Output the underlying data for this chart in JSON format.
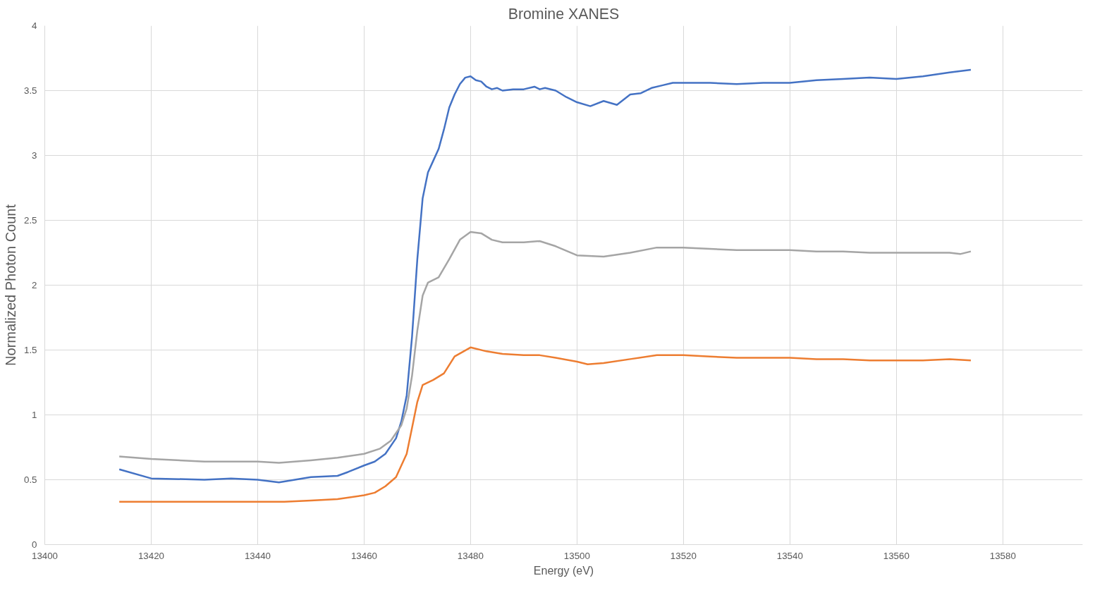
{
  "chart_data": {
    "type": "line",
    "title": "Bromine XANES",
    "xlabel": "Energy (eV)",
    "ylabel": "Normalized Photon Count",
    "xlim": [
      13400,
      13595
    ],
    "xticks": [
      13400,
      13420,
      13440,
      13460,
      13480,
      13500,
      13520,
      13540,
      13560,
      13580
    ],
    "ylim": [
      0,
      4
    ],
    "yticks": [
      0,
      0.5,
      1,
      1.5,
      2,
      2.5,
      3,
      3.5,
      4
    ],
    "grid": true,
    "marker": "none",
    "line_style": "solid",
    "series": [
      {
        "color": "#4472c4",
        "x": [
          13414,
          13420,
          13430,
          13435,
          13440,
          13444,
          13450,
          13455,
          13457,
          13460,
          13462,
          13464,
          13466,
          13467,
          13468,
          13469,
          13470,
          13471,
          13472,
          13473,
          13474,
          13475,
          13476,
          13477,
          13478,
          13479,
          13480,
          13481,
          13482,
          13483,
          13484,
          13485,
          13486,
          13488,
          13490,
          13492,
          13493,
          13494,
          13496,
          13498,
          13500,
          13502.5,
          13505,
          13507.5,
          13510,
          13512,
          13514,
          13516,
          13518,
          13520,
          13525,
          13530,
          13535,
          13540,
          13545,
          13550,
          13555,
          13560,
          13565,
          13570,
          13574
        ],
        "values": [
          0.58,
          0.51,
          0.5,
          0.51,
          0.5,
          0.48,
          0.52,
          0.53,
          0.56,
          0.61,
          0.64,
          0.7,
          0.82,
          0.95,
          1.15,
          1.6,
          2.2,
          2.67,
          2.87,
          2.96,
          3.05,
          3.2,
          3.37,
          3.47,
          3.55,
          3.6,
          3.61,
          3.58,
          3.57,
          3.53,
          3.51,
          3.52,
          3.5,
          3.51,
          3.51,
          3.53,
          3.51,
          3.52,
          3.5,
          3.45,
          3.41,
          3.38,
          3.42,
          3.39,
          3.47,
          3.48,
          3.52,
          3.54,
          3.56,
          3.56,
          3.56,
          3.55,
          3.56,
          3.56,
          3.58,
          3.59,
          3.6,
          3.59,
          3.61,
          3.64,
          3.66
        ]
      },
      {
        "color": "#a5a5a5",
        "x": [
          13414,
          13420,
          13430,
          13440,
          13444,
          13450,
          13455,
          13460,
          13463,
          13465,
          13467,
          13468,
          13469,
          13470,
          13471,
          13472,
          13474,
          13476,
          13478,
          13480,
          13482,
          13484,
          13486,
          13490,
          13493,
          13496,
          13500,
          13505,
          13510,
          13515,
          13520,
          13525,
          13530,
          13535,
          13540,
          13545,
          13550,
          13555,
          13560,
          13565,
          13570,
          13572,
          13574
        ],
        "values": [
          0.68,
          0.66,
          0.64,
          0.64,
          0.63,
          0.65,
          0.67,
          0.7,
          0.74,
          0.8,
          0.92,
          1.05,
          1.3,
          1.65,
          1.92,
          2.02,
          2.06,
          2.2,
          2.35,
          2.41,
          2.4,
          2.35,
          2.33,
          2.33,
          2.34,
          2.3,
          2.23,
          2.22,
          2.25,
          2.29,
          2.29,
          2.28,
          2.27,
          2.27,
          2.27,
          2.26,
          2.26,
          2.25,
          2.25,
          2.25,
          2.25,
          2.24,
          2.26
        ]
      },
      {
        "color": "#ed7d31",
        "x": [
          13414,
          13440,
          13445,
          13450,
          13455,
          13460,
          13462,
          13464,
          13466,
          13468,
          13469,
          13470,
          13471,
          13473,
          13475,
          13477,
          13480,
          13483,
          13486,
          13490,
          13493,
          13496,
          13500,
          13502,
          13505,
          13510,
          13515,
          13520,
          13525,
          13530,
          13540,
          13545,
          13550,
          13555,
          13560,
          13565,
          13570,
          13574
        ],
        "values": [
          0.33,
          0.33,
          0.33,
          0.34,
          0.35,
          0.38,
          0.4,
          0.45,
          0.52,
          0.7,
          0.9,
          1.1,
          1.23,
          1.27,
          1.32,
          1.45,
          1.52,
          1.49,
          1.47,
          1.46,
          1.46,
          1.44,
          1.41,
          1.39,
          1.4,
          1.43,
          1.46,
          1.46,
          1.45,
          1.44,
          1.44,
          1.43,
          1.43,
          1.42,
          1.42,
          1.42,
          1.43,
          1.42
        ]
      }
    ]
  }
}
